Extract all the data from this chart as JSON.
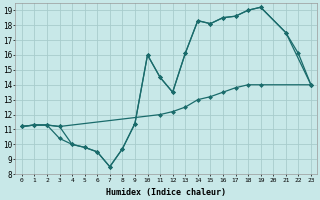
{
  "line1_x": [
    0,
    1,
    2,
    3,
    4,
    5,
    6,
    7,
    8,
    9,
    10,
    11,
    12,
    13,
    14,
    15,
    16,
    17,
    18,
    19,
    21,
    22,
    23
  ],
  "line1_y": [
    11.2,
    11.3,
    11.3,
    10.4,
    10.0,
    9.8,
    9.5,
    8.5,
    9.7,
    11.4,
    16.0,
    14.5,
    13.5,
    16.1,
    18.3,
    18.1,
    18.5,
    18.6,
    19.0,
    19.2,
    17.5,
    16.1,
    14.0
  ],
  "line2_x": [
    0,
    1,
    2,
    3,
    11,
    12,
    13,
    14,
    15,
    16,
    17,
    18,
    19,
    23
  ],
  "line2_y": [
    11.2,
    11.3,
    11.3,
    11.2,
    12.0,
    12.2,
    12.5,
    13.0,
    13.2,
    13.5,
    13.8,
    14.0,
    14.0,
    14.0
  ],
  "line3_x": [
    0,
    1,
    2,
    3,
    4,
    5,
    6,
    7,
    8,
    9,
    10,
    11,
    12,
    13,
    14,
    15,
    16,
    17,
    18,
    19,
    21,
    23
  ],
  "line3_y": [
    11.2,
    11.3,
    11.3,
    11.2,
    10.0,
    9.8,
    9.5,
    8.5,
    9.7,
    11.4,
    16.0,
    14.5,
    13.5,
    16.1,
    18.3,
    18.1,
    18.5,
    18.6,
    19.0,
    19.2,
    17.5,
    14.0
  ],
  "bg_color": "#c8e8e8",
  "grid_color": "#a8cccc",
  "line_color": "#1a6b6b",
  "xlabel": "Humidex (Indice chaleur)",
  "xlim": [
    -0.5,
    23.5
  ],
  "ylim": [
    8,
    19.5
  ],
  "xticks": [
    0,
    1,
    2,
    3,
    4,
    5,
    6,
    7,
    8,
    9,
    10,
    11,
    12,
    13,
    14,
    15,
    16,
    17,
    18,
    19,
    20,
    21,
    22,
    23
  ],
  "yticks": [
    8,
    9,
    10,
    11,
    12,
    13,
    14,
    15,
    16,
    17,
    18,
    19
  ]
}
